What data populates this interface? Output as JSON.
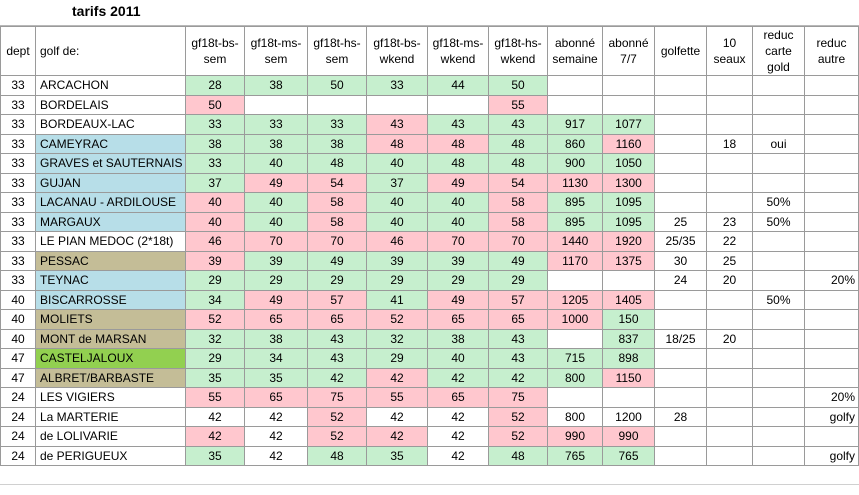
{
  "title": "tarifs 2011",
  "colors": {
    "green": "#c6efce",
    "pink": "#ffc7ce",
    "blue": "#b7dee8",
    "tan": "#c4bd97",
    "lime": "#92d050",
    "white": "#ffffff"
  },
  "headers": [
    "dept",
    "golf de:",
    "gf18t-bs-sem",
    "gf18t-ms-sem",
    "gf18t-hs-sem",
    "gf18t-bs-wkend",
    "gf18t-ms-wkend",
    "gf18t-hs-wkend",
    "abonné semaine",
    "abonné 7/7",
    "golfette",
    "10 seaux",
    "reduc carte gold",
    "reduc autre"
  ],
  "rows": [
    {
      "cells": [
        "33",
        "ARCACHON",
        "28",
        "38",
        "50",
        "33",
        "44",
        "50",
        "",
        "",
        "",
        "",
        "",
        ""
      ],
      "fill": [
        "",
        "",
        "g",
        "g",
        "g",
        "g",
        "g",
        "g",
        "",
        "",
        "",
        "",
        "",
        ""
      ]
    },
    {
      "cells": [
        "33",
        "BORDELAIS",
        "50",
        "",
        "",
        "",
        "",
        "55",
        "",
        "",
        "",
        "",
        "",
        ""
      ],
      "fill": [
        "",
        "",
        "p",
        "",
        "",
        "",
        "",
        "p",
        "",
        "",
        "",
        "",
        "",
        ""
      ]
    },
    {
      "cells": [
        "33",
        "BORDEAUX-LAC",
        "33",
        "33",
        "33",
        "43",
        "43",
        "43",
        "917",
        "1077",
        "",
        "",
        "",
        ""
      ],
      "fill": [
        "",
        "",
        "g",
        "g",
        "g",
        "p",
        "g",
        "g",
        "g",
        "g",
        "",
        "",
        "",
        ""
      ]
    },
    {
      "cells": [
        "33",
        "CAMEYRAC",
        "38",
        "38",
        "38",
        "48",
        "48",
        "48",
        "860",
        "1160",
        "",
        "18",
        "oui",
        ""
      ],
      "fill": [
        "",
        "b",
        "g",
        "g",
        "g",
        "p",
        "p",
        "g",
        "g",
        "p",
        "",
        "",
        "",
        ""
      ]
    },
    {
      "cells": [
        "33",
        "GRAVES et SAUTERNAIS",
        "33",
        "40",
        "48",
        "40",
        "48",
        "48",
        "900",
        "1050",
        "",
        "",
        "",
        ""
      ],
      "fill": [
        "",
        "b",
        "g",
        "g",
        "g",
        "g",
        "g",
        "g",
        "g",
        "g",
        "",
        "",
        "",
        ""
      ]
    },
    {
      "cells": [
        "33",
        "GUJAN",
        "37",
        "49",
        "54",
        "37",
        "49",
        "54",
        "1130",
        "1300",
        "",
        "",
        "",
        ""
      ],
      "fill": [
        "",
        "b",
        "g",
        "p",
        "p",
        "g",
        "p",
        "p",
        "p",
        "p",
        "",
        "",
        "",
        ""
      ]
    },
    {
      "cells": [
        "33",
        "LACANAU - ARDILOUSE",
        "40",
        "40",
        "58",
        "40",
        "40",
        "58",
        "895",
        "1095",
        "",
        "",
        "50%",
        ""
      ],
      "fill": [
        "",
        "b",
        "p",
        "g",
        "p",
        "g",
        "g",
        "p",
        "g",
        "g",
        "",
        "",
        "",
        ""
      ]
    },
    {
      "cells": [
        "33",
        "MARGAUX",
        "40",
        "40",
        "58",
        "40",
        "40",
        "58",
        "895",
        "1095",
        "25",
        "23",
        "50%",
        ""
      ],
      "fill": [
        "",
        "b",
        "p",
        "g",
        "p",
        "g",
        "g",
        "p",
        "g",
        "g",
        "",
        "",
        "",
        ""
      ]
    },
    {
      "cells": [
        "33",
        "LE PIAN MEDOC (2*18t)",
        "46",
        "70",
        "70",
        "46",
        "70",
        "70",
        "1440",
        "1920",
        "25/35",
        "22",
        "",
        ""
      ],
      "fill": [
        "",
        "",
        "p",
        "p",
        "p",
        "p",
        "p",
        "p",
        "p",
        "p",
        "",
        "",
        "",
        ""
      ]
    },
    {
      "cells": [
        "33",
        "PESSAC",
        "39",
        "39",
        "49",
        "39",
        "39",
        "49",
        "1170",
        "1375",
        "30",
        "25",
        "",
        ""
      ],
      "fill": [
        "",
        "t",
        "p",
        "g",
        "g",
        "g",
        "g",
        "g",
        "p",
        "p",
        "",
        "",
        "",
        ""
      ]
    },
    {
      "cells": [
        "33",
        "TEYNAC",
        "29",
        "29",
        "29",
        "29",
        "29",
        "29",
        "",
        "",
        "24",
        "20",
        "",
        "20%"
      ],
      "fill": [
        "",
        "b",
        "g",
        "g",
        "g",
        "g",
        "g",
        "g",
        "",
        "",
        "",
        "",
        "",
        ""
      ]
    },
    {
      "cells": [
        "40",
        "BISCARROSSE",
        "34",
        "49",
        "57",
        "41",
        "49",
        "57",
        "1205",
        "1405",
        "",
        "",
        "50%",
        ""
      ],
      "fill": [
        "",
        "b",
        "g",
        "p",
        "p",
        "g",
        "p",
        "p",
        "p",
        "p",
        "",
        "",
        "",
        ""
      ]
    },
    {
      "cells": [
        "40",
        "MOLIETS",
        "52",
        "65",
        "65",
        "52",
        "65",
        "65",
        "1000",
        "150",
        "",
        "",
        "",
        ""
      ],
      "fill": [
        "",
        "t",
        "p",
        "p",
        "p",
        "p",
        "p",
        "p",
        "p",
        "g",
        "",
        "",
        "",
        ""
      ]
    },
    {
      "cells": [
        "40",
        "MONT de MARSAN",
        "32",
        "38",
        "43",
        "32",
        "38",
        "43",
        "",
        "837",
        "18/25",
        "20",
        "",
        ""
      ],
      "fill": [
        "",
        "t",
        "g",
        "g",
        "g",
        "g",
        "g",
        "g",
        "",
        "g",
        "",
        "",
        "",
        ""
      ]
    },
    {
      "cells": [
        "47",
        "CASTELJALOUX",
        "29",
        "34",
        "43",
        "29",
        "40",
        "43",
        "715",
        "898",
        "",
        "",
        "",
        ""
      ],
      "fill": [
        "",
        "l",
        "g",
        "g",
        "g",
        "g",
        "g",
        "g",
        "g",
        "g",
        "",
        "",
        "",
        ""
      ]
    },
    {
      "cells": [
        "47",
        "ALBRET/BARBASTE",
        "35",
        "35",
        "42",
        "42",
        "42",
        "42",
        "800",
        "1150",
        "",
        "",
        "",
        ""
      ],
      "fill": [
        "",
        "t",
        "g",
        "g",
        "g",
        "p",
        "g",
        "g",
        "g",
        "p",
        "",
        "",
        "",
        ""
      ]
    },
    {
      "cells": [
        "24",
        "LES VIGIERS",
        "55",
        "65",
        "75",
        "55",
        "65",
        "75",
        "",
        "",
        "",
        "",
        "",
        "20%"
      ],
      "fill": [
        "",
        "",
        "p",
        "p",
        "p",
        "p",
        "p",
        "p",
        "",
        "",
        "",
        "",
        "",
        ""
      ]
    },
    {
      "cells": [
        "24",
        "La MARTERIE",
        "42",
        "42",
        "52",
        "42",
        "42",
        "52",
        "800",
        "1200",
        "28",
        "",
        "",
        "golfy"
      ],
      "fill": [
        "",
        "",
        "",
        "",
        "p",
        "",
        "",
        "p",
        "",
        "",
        "",
        "",
        "",
        ""
      ]
    },
    {
      "cells": [
        "24",
        "de LOLIVARIE",
        "42",
        "42",
        "52",
        "42",
        "42",
        "52",
        "990",
        "990",
        "",
        "",
        "",
        ""
      ],
      "fill": [
        "",
        "",
        "p",
        "",
        "p",
        "p",
        "",
        "p",
        "p",
        "p",
        "",
        "",
        "",
        ""
      ]
    },
    {
      "cells": [
        "24",
        "de PERIGUEUX",
        "35",
        "42",
        "48",
        "35",
        "42",
        "48",
        "765",
        "765",
        "",
        "",
        "",
        "golfy"
      ],
      "fill": [
        "",
        "",
        "g",
        "",
        "g",
        "g",
        "",
        "g",
        "g",
        "g",
        "",
        "",
        "",
        ""
      ]
    }
  ]
}
